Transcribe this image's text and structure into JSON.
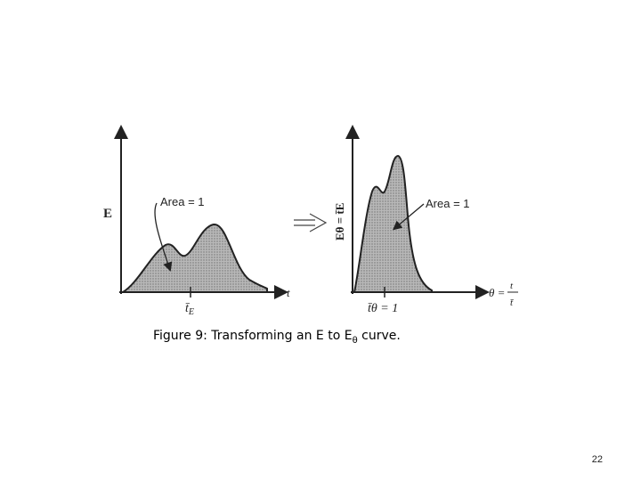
{
  "left_panel": {
    "y_label": "E",
    "annotation": "Area = 1",
    "x_label": "t",
    "x_tick": "t̄",
    "x_tick_sub": "E"
  },
  "right_panel": {
    "y_label": "Eθ = t̄E",
    "annotation": "Area = 1",
    "x_label": "θ =",
    "x_label_numerator": "t",
    "x_label_denominator": "t̄",
    "x_tick": "t̄θ = 1"
  },
  "caption": {
    "text": "Figure 9: Transforming an E to E",
    "subscript": "θ",
    "end": " curve."
  },
  "page_number": "22"
}
